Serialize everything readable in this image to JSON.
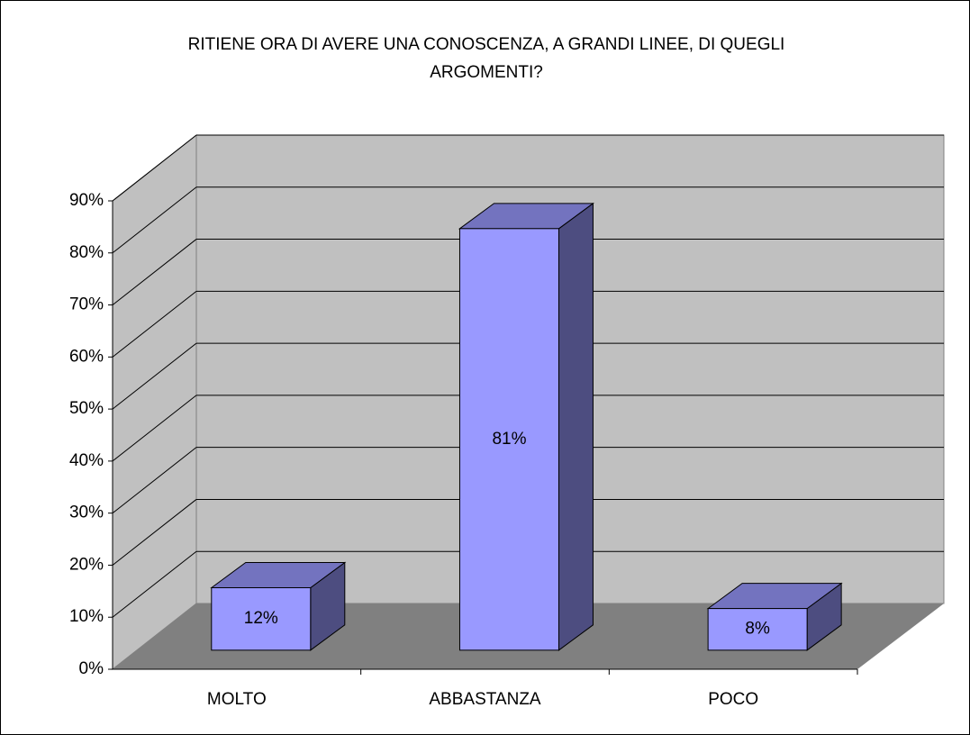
{
  "chart_data": {
    "type": "bar3d",
    "title": "RITIENE ORA DI AVERE UNA CONOSCENZA, A GRANDI LINEE, DI QUEGLI ARGOMENTI?",
    "categories": [
      "MOLTO",
      "ABBASTANZA",
      "POCO"
    ],
    "values": [
      12,
      81,
      8
    ],
    "value_labels": [
      "12%",
      "81%",
      "8%"
    ],
    "color": "#9999ff",
    "ylim": [
      0,
      90
    ],
    "yticks": [
      {
        "value": 0,
        "label": "0%"
      },
      {
        "value": 10,
        "label": "10%"
      },
      {
        "value": 20,
        "label": "20%"
      },
      {
        "value": 30,
        "label": "30%"
      },
      {
        "value": 40,
        "label": "40%"
      },
      {
        "value": 50,
        "label": "50%"
      },
      {
        "value": 60,
        "label": "60%"
      },
      {
        "value": 70,
        "label": "70%"
      },
      {
        "value": 80,
        "label": "80%"
      },
      {
        "value": 90,
        "label": "90%"
      }
    ],
    "grid": true
  }
}
